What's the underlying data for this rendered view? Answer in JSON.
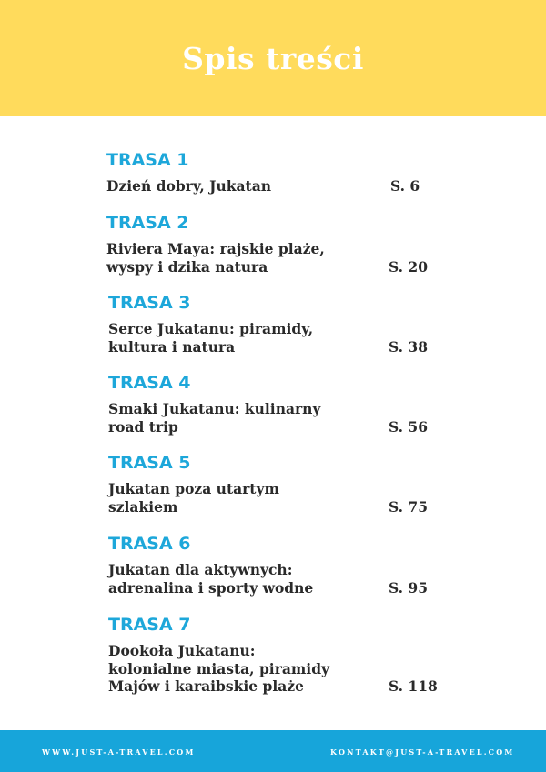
{
  "header": {
    "title": "Spis treści"
  },
  "entries": [
    {
      "route": "TRASA 1",
      "title": "Dzień dobry,  Jukatan",
      "page": "S. 6"
    },
    {
      "route": "TRASA 2",
      "title": "Riviera Maya: rajskie plaże, wyspy i dzika natura",
      "page": "S. 20"
    },
    {
      "route": "TRASA 3",
      "title": "Serce Jukatanu: piramidy, kultura i natura",
      "page": "S. 38"
    },
    {
      "route": "TRASA 4",
      "title": "Smaki Jukatanu: kulinarny road trip",
      "page": "S. 56"
    },
    {
      "route": "TRASA 5",
      "title": "Jukatan poza utartym szlakiem",
      "page": "S. 75"
    },
    {
      "route": "TRASA 6",
      "title": "Jukatan dla aktywnych: adrenalina i sporty wodne",
      "page": "S. 95"
    },
    {
      "route": "TRASA 7",
      "title": "Dookoła Jukatanu: kolonialne miasta, piramidy Majów i karaibskie plaże",
      "page": "S. 118"
    }
  ],
  "footer": {
    "website": "WWW.JUST-A-TRAVEL.COM",
    "email": "KONTAKT@JUST-A-TRAVEL.COM"
  },
  "colors": {
    "header_bg": "#FFDB5C",
    "accent": "#1DA7DA",
    "footer_bg": "#17A5DA"
  }
}
